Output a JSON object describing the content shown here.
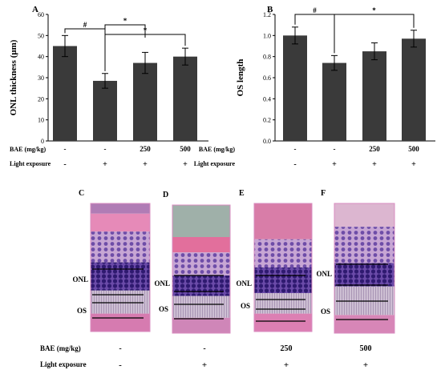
{
  "chart_data": [
    {
      "panel": "A",
      "type": "bar",
      "ylabel": "ONL thickness (μm)",
      "ylim": [
        0,
        60
      ],
      "yticks": [
        0,
        10,
        20,
        30,
        40,
        50,
        60
      ],
      "values": [
        45,
        28.5,
        37,
        40
      ],
      "errors": [
        5,
        3.5,
        5,
        4
      ],
      "bar_color": "#3a3a3a",
      "significance": [
        {
          "from": 0,
          "to": 1,
          "label": "#"
        },
        {
          "from": 1,
          "to": 2,
          "label": "*"
        },
        {
          "from": 1,
          "to": 3,
          "label": "*"
        }
      ]
    },
    {
      "panel": "B",
      "type": "bar",
      "ylabel": "OS length",
      "ylim": [
        0,
        1.2
      ],
      "yticks": [
        "0.0",
        "0.2",
        "0.4",
        "0.6",
        "0.8",
        "1.0",
        "1.2"
      ],
      "values": [
        1.0,
        0.74,
        0.85,
        0.97
      ],
      "errors": [
        0.08,
        0.07,
        0.08,
        0.08
      ],
      "bar_color": "#3a3a3a",
      "significance": [
        {
          "from": 0,
          "to": 1,
          "label": "#"
        },
        {
          "from": 1,
          "to": 3,
          "label": "*"
        }
      ]
    }
  ],
  "treatment": {
    "bae_label": "BAE (mg/kg)",
    "light_label": "Light exposure",
    "bae": [
      "-",
      "-",
      "250",
      "500"
    ],
    "light": [
      "-",
      "+",
      "+",
      "+"
    ]
  },
  "micrographs": {
    "panels": [
      {
        "letter": "C",
        "onl": "ONL",
        "os": "OS"
      },
      {
        "letter": "D",
        "onl": "ONL",
        "os": "OS"
      },
      {
        "letter": "E",
        "onl": "ONL",
        "os": "OS"
      },
      {
        "letter": "F",
        "onl": "ONL",
        "os": "OS"
      }
    ]
  },
  "colors": {
    "bar": "#3a3a3a",
    "tissue_pink": "#d98cc0",
    "tissue_purple": "#4b2a8c",
    "tissue_light": "#c9b7cf"
  }
}
